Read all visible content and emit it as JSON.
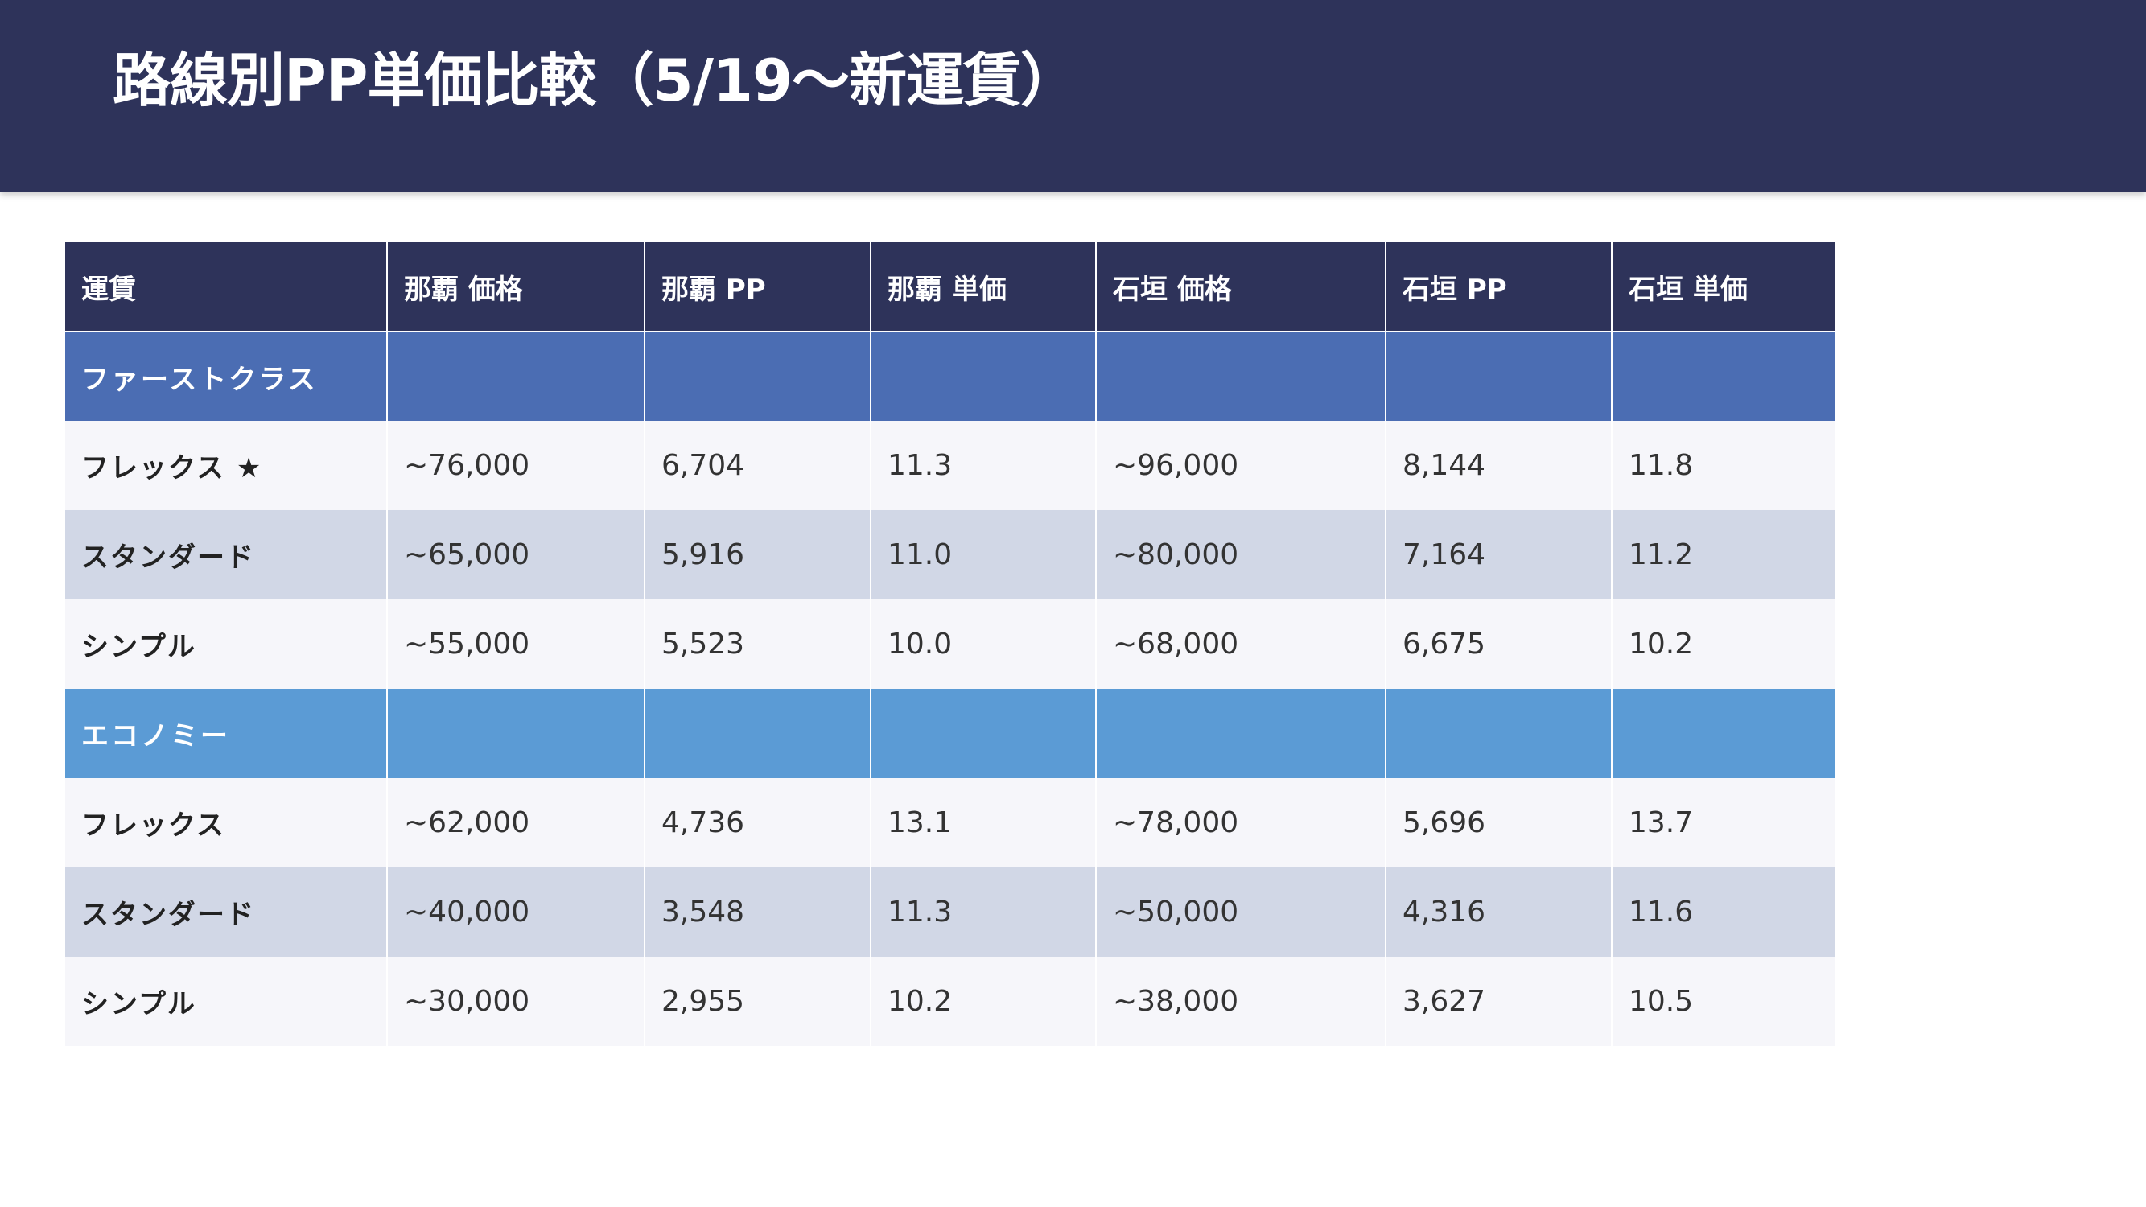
{
  "header": {
    "title": "路線別PP単価比較（5/19〜新運賃）"
  },
  "colors": {
    "header_bg": "#2e335a",
    "first_class_band": "#4b6db3",
    "economy_band": "#5b9bd5",
    "row_light": "#f6f6fa",
    "row_dark": "#d1d7e6"
  },
  "table": {
    "columns": [
      "運賃",
      "那覇 価格",
      "那覇 PP",
      "那覇 単価",
      "石垣 価格",
      "石垣 PP",
      "石垣 単価"
    ],
    "sections": [
      {
        "label": "ファーストクラス",
        "rows": [
          {
            "fare": "フレックス ★",
            "naha_price": "~76,000",
            "naha_pp": "6,704",
            "naha_unit": "11.3",
            "ishigaki_price": "~96,000",
            "ishigaki_pp": "8,144",
            "ishigaki_unit": "11.8"
          },
          {
            "fare": "スタンダード",
            "naha_price": "~65,000",
            "naha_pp": "5,916",
            "naha_unit": "11.0",
            "ishigaki_price": "~80,000",
            "ishigaki_pp": "7,164",
            "ishigaki_unit": "11.2"
          },
          {
            "fare": "シンプル",
            "naha_price": "~55,000",
            "naha_pp": "5,523",
            "naha_unit": "10.0",
            "ishigaki_price": "~68,000",
            "ishigaki_pp": "6,675",
            "ishigaki_unit": "10.2"
          }
        ]
      },
      {
        "label": "エコノミー",
        "rows": [
          {
            "fare": "フレックス",
            "naha_price": "~62,000",
            "naha_pp": "4,736",
            "naha_unit": "13.1",
            "ishigaki_price": "~78,000",
            "ishigaki_pp": "5,696",
            "ishigaki_unit": "13.7"
          },
          {
            "fare": "スタンダード",
            "naha_price": "~40,000",
            "naha_pp": "3,548",
            "naha_unit": "11.3",
            "ishigaki_price": "~50,000",
            "ishigaki_pp": "4,316",
            "ishigaki_unit": "11.6"
          },
          {
            "fare": "シンプル",
            "naha_price": "~30,000",
            "naha_pp": "2,955",
            "naha_unit": "10.2",
            "ishigaki_price": "~38,000",
            "ishigaki_pp": "3,627",
            "ishigaki_unit": "10.5"
          }
        ]
      }
    ]
  }
}
